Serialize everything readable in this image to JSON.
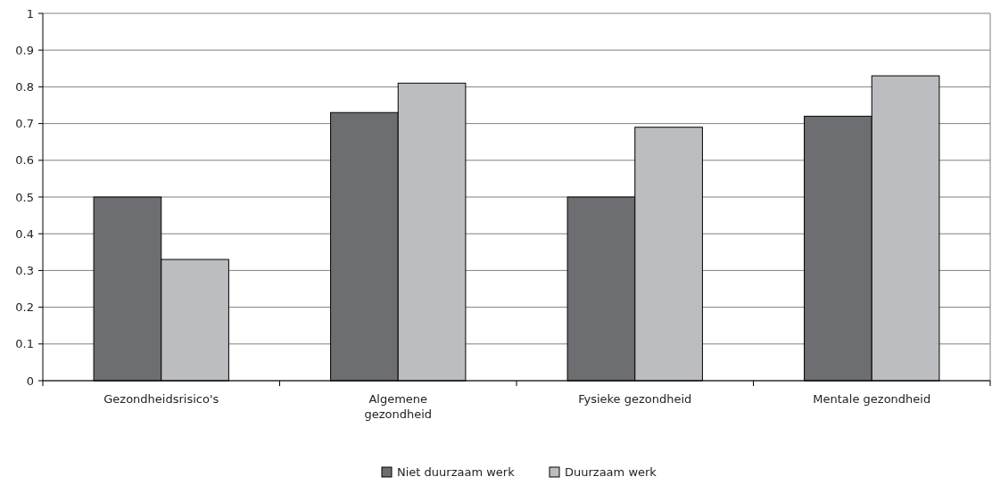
{
  "chart_data": {
    "type": "bar",
    "categories": [
      "Gezondheidsrisico's",
      "Algemene gezondheid",
      "Fysieke gezondheid",
      "Mentale gezondheid"
    ],
    "series": [
      {
        "name": "Niet duurzaam werk",
        "color": "#6d6e71",
        "values": [
          0.5,
          0.73,
          0.5,
          0.72
        ]
      },
      {
        "name": "Duurzaam werk",
        "color": "#bcbdc0",
        "values": [
          0.33,
          0.81,
          0.69,
          0.83
        ]
      }
    ],
    "ylim": [
      0,
      1
    ],
    "yticks": [
      0,
      0.1,
      0.2,
      0.3,
      0.4,
      0.5,
      0.6,
      0.7,
      0.8,
      0.9,
      1
    ],
    "grid": "y",
    "legend": "bottom"
  }
}
